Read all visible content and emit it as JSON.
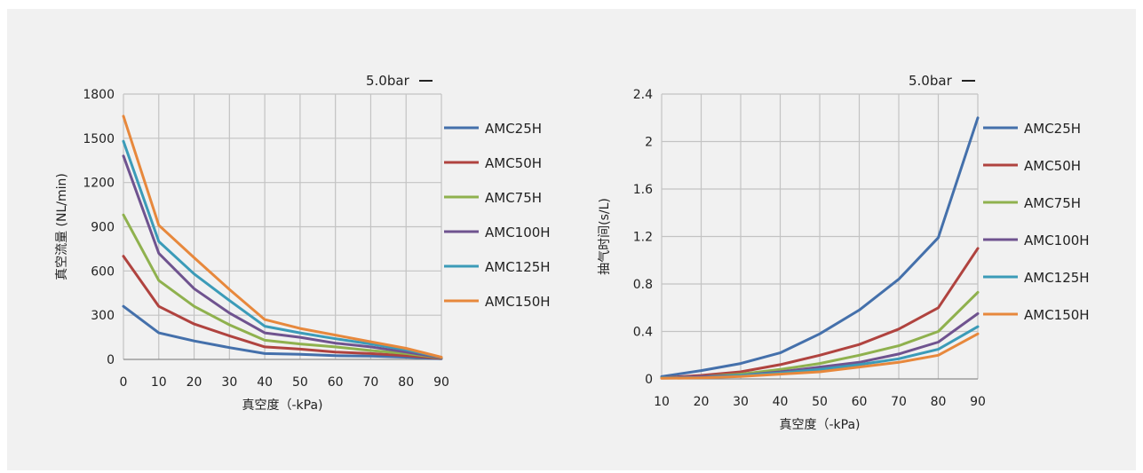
{
  "colors": {
    "AMC25H": "#4470ab",
    "AMC50H": "#b0433f",
    "AMC75H": "#8fb14e",
    "AMC100H": "#6f538f",
    "AMC125H": "#3b9bb8",
    "AMC150H": "#e7883c",
    "grid": "#c3c3c3",
    "background": "#f1f1f1"
  },
  "chart_data": [
    {
      "type": "line",
      "caption": "5.0bar",
      "ylabel": "真空流量 (NL/min)",
      "xlabel": "真空度（-kPa)",
      "x": [
        0,
        10,
        20,
        30,
        40,
        50,
        60,
        70,
        80,
        90
      ],
      "xticks": [
        "0",
        "10",
        "20",
        "30",
        "40",
        "50",
        "60",
        "70",
        "80",
        "90"
      ],
      "yticks": [
        "0",
        "300",
        "600",
        "900",
        "1200",
        "1500",
        "1800"
      ],
      "ylim": [
        0,
        1800
      ],
      "grid": true,
      "legend": "right",
      "series": [
        {
          "name": "AMC25H",
          "values": [
            360,
            180,
            125,
            80,
            40,
            35,
            25,
            22,
            15,
            5
          ]
        },
        {
          "name": "AMC50H",
          "values": [
            700,
            360,
            240,
            160,
            85,
            70,
            50,
            40,
            25,
            8
          ]
        },
        {
          "name": "AMC75H",
          "values": [
            980,
            535,
            360,
            235,
            130,
            105,
            85,
            60,
            40,
            10
          ]
        },
        {
          "name": "AMC100H",
          "values": [
            1380,
            720,
            480,
            315,
            180,
            150,
            110,
            85,
            50,
            12
          ]
        },
        {
          "name": "AMC125H",
          "values": [
            1480,
            800,
            580,
            400,
            225,
            180,
            140,
            105,
            65,
            14
          ]
        },
        {
          "name": "AMC150H",
          "values": [
            1650,
            910,
            690,
            475,
            270,
            210,
            165,
            120,
            75,
            15
          ]
        }
      ]
    },
    {
      "type": "line",
      "caption": "5.0bar",
      "ylabel": "抽气时间(s/L)",
      "xlabel": "真空度（-kPa)",
      "x": [
        10,
        20,
        30,
        40,
        50,
        60,
        70,
        80,
        90
      ],
      "xticks": [
        "10",
        "20",
        "30",
        "40",
        "50",
        "60",
        "70",
        "80",
        "90"
      ],
      "yticks": [
        "0",
        "0.4",
        "0.8",
        "1.2",
        "1.6",
        "2",
        "2.4"
      ],
      "ylim": [
        0,
        2.4
      ],
      "grid": true,
      "legend": "right",
      "series": [
        {
          "name": "AMC25H",
          "values": [
            0.02,
            0.07,
            0.13,
            0.22,
            0.38,
            0.58,
            0.84,
            1.19,
            2.2
          ]
        },
        {
          "name": "AMC50H",
          "values": [
            0.01,
            0.03,
            0.06,
            0.12,
            0.2,
            0.29,
            0.42,
            0.6,
            1.1
          ]
        },
        {
          "name": "AMC75H",
          "values": [
            0.01,
            0.02,
            0.04,
            0.08,
            0.13,
            0.2,
            0.28,
            0.4,
            0.73
          ]
        },
        {
          "name": "AMC100H",
          "values": [
            0.01,
            0.02,
            0.03,
            0.06,
            0.1,
            0.14,
            0.21,
            0.31,
            0.55
          ]
        },
        {
          "name": "AMC125H",
          "values": [
            0.01,
            0.01,
            0.03,
            0.05,
            0.08,
            0.12,
            0.17,
            0.25,
            0.44
          ]
        },
        {
          "name": "AMC150H",
          "values": [
            0.005,
            0.01,
            0.02,
            0.04,
            0.06,
            0.1,
            0.14,
            0.2,
            0.38
          ]
        }
      ]
    }
  ]
}
